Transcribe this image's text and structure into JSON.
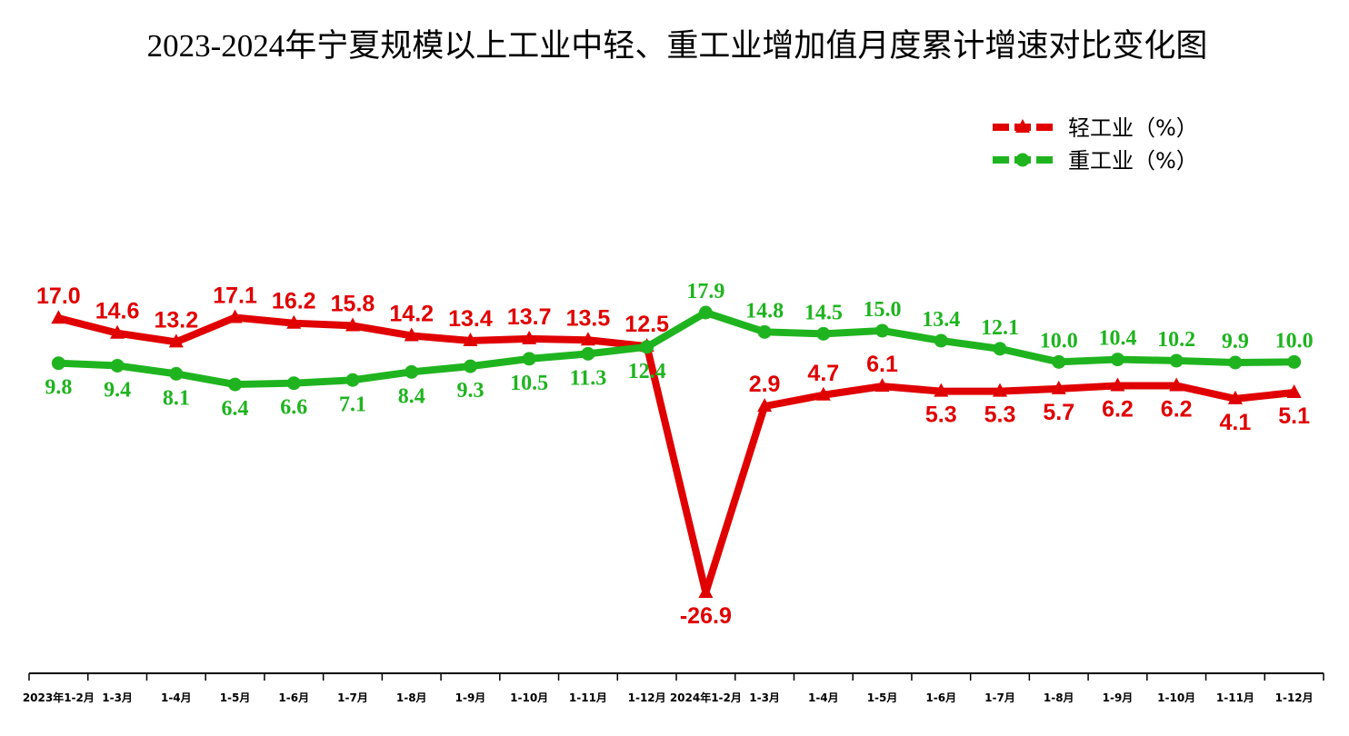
{
  "chart_data": {
    "type": "line",
    "title": "2023-2024年宁夏规模以上工业中轻、重工业增加值月度累计增速对比变化图",
    "categories": [
      "2023年1-2月",
      "1-3月",
      "1-4月",
      "1-5月",
      "1-6月",
      "1-7月",
      "1-8月",
      "1-9月",
      "1-10月",
      "1-11月",
      "1-12月",
      "2024年1-2月",
      "1-3月",
      "1-4月",
      "1-5月",
      "1-6月",
      "1-7月",
      "1-8月",
      "1-9月",
      "1-10月",
      "1-11月",
      "1-12月"
    ],
    "series": [
      {
        "name": "轻工业（%）",
        "color": "#e00000",
        "marker": "triangle",
        "values": [
          17.0,
          14.6,
          13.2,
          17.1,
          16.2,
          15.8,
          14.2,
          13.4,
          13.7,
          13.5,
          12.5,
          -26.9,
          2.9,
          4.7,
          6.1,
          5.3,
          5.3,
          5.7,
          6.2,
          6.2,
          4.1,
          5.1
        ],
        "value_labels": [
          "17.0",
          "14.6",
          "13.2",
          "17.1",
          "16.2",
          "15.8",
          "14.2",
          "13.4",
          "13.7",
          "13.5",
          "12.5",
          "-26.9",
          "2.9",
          "4.7",
          "6.1",
          "5.3",
          "5.3",
          "5.7",
          "6.2",
          "6.2",
          "4.1",
          "5.1"
        ]
      },
      {
        "name": "重工业（%）",
        "color": "#1fb41f",
        "marker": "circle",
        "values": [
          9.8,
          9.4,
          8.1,
          6.4,
          6.6,
          7.1,
          8.4,
          9.3,
          10.5,
          11.3,
          12.4,
          17.9,
          14.8,
          14.5,
          15.0,
          13.4,
          12.1,
          10.0,
          10.4,
          10.2,
          9.9,
          10.0
        ],
        "value_labels": [
          "9.8",
          "9.4",
          "8.1",
          "6.4",
          "6.6",
          "7.1",
          "8.4",
          "9.3",
          "10.5",
          "11.3",
          "12.4",
          "17.9",
          "14.8",
          "14.5",
          "15.0",
          "13.4",
          "12.1",
          "10.0",
          "10.4",
          "10.2",
          "9.9",
          "10.0"
        ]
      }
    ]
  }
}
